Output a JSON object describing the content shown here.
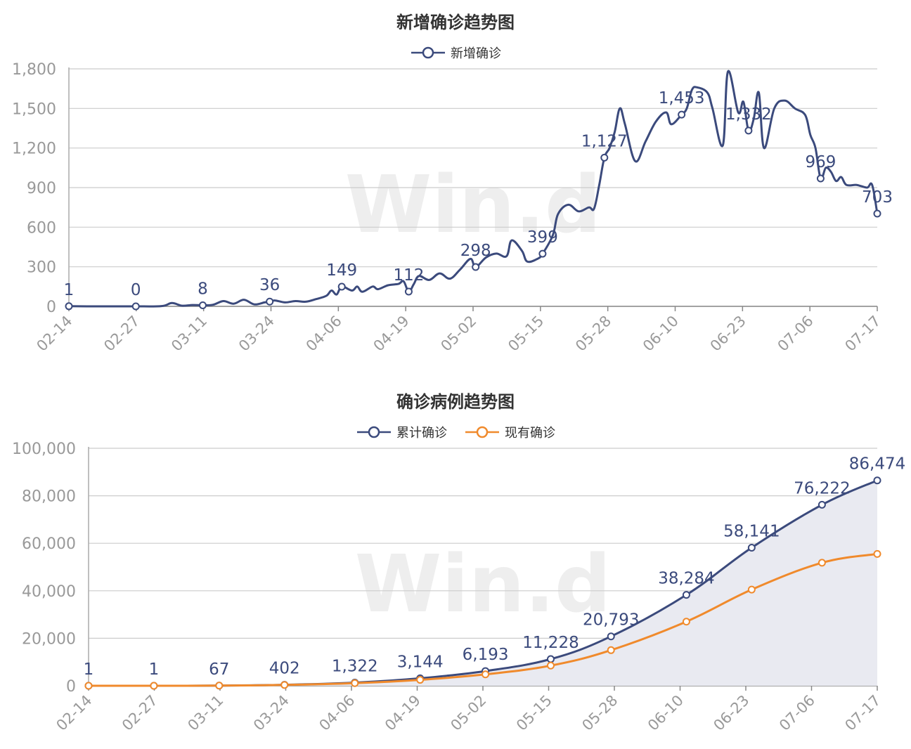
{
  "chart_data": [
    {
      "type": "line",
      "title": "新增确诊趋势图",
      "watermark": "Win.d",
      "x_ticks": [
        "02-14",
        "02-27",
        "03-11",
        "03-24",
        "04-06",
        "04-19",
        "05-02",
        "05-15",
        "05-28",
        "06-10",
        "06-23",
        "07-06",
        "07-17"
      ],
      "ylim": [
        0,
        1800
      ],
      "y_ticks": [
        0,
        300,
        600,
        900,
        1200,
        1500,
        1800
      ],
      "y_tick_labels": [
        "0",
        "300",
        "600",
        "900",
        "1,200",
        "1,500",
        "1,800"
      ],
      "grid": true,
      "legend": "top-center",
      "series": [
        {
          "name": "新增确诊",
          "color": "#3b4a7c",
          "smooth": true,
          "area": false,
          "points": [
            [
              0,
              1
            ],
            [
              5,
              0
            ],
            [
              10,
              0
            ],
            [
              13,
              0
            ],
            [
              18,
              2
            ],
            [
              20,
              25
            ],
            [
              22,
              5
            ],
            [
              24,
              10
            ],
            [
              26,
              8
            ],
            [
              28,
              12
            ],
            [
              30,
              40
            ],
            [
              32,
              20
            ],
            [
              34,
              50
            ],
            [
              36,
              15
            ],
            [
              38,
              30
            ],
            [
              39,
              36
            ],
            [
              40,
              45
            ],
            [
              42,
              30
            ],
            [
              44,
              40
            ],
            [
              46,
              35
            ],
            [
              48,
              55
            ],
            [
              50,
              80
            ],
            [
              51,
              120
            ],
            [
              52,
              90
            ],
            [
              53,
              149
            ],
            [
              55,
              120
            ],
            [
              56,
              150
            ],
            [
              57,
              110
            ],
            [
              59,
              150
            ],
            [
              60,
              130
            ],
            [
              62,
              160
            ],
            [
              64,
              170
            ],
            [
              65,
              190
            ],
            [
              66,
              112
            ],
            [
              67,
              170
            ],
            [
              68,
              230
            ],
            [
              70,
              200
            ],
            [
              72,
              250
            ],
            [
              74,
              210
            ],
            [
              76,
              280
            ],
            [
              78,
              360
            ],
            [
              79,
              298
            ],
            [
              81,
              370
            ],
            [
              83,
              400
            ],
            [
              85,
              380
            ],
            [
              86,
              500
            ],
            [
              88,
              420
            ],
            [
              89,
              340
            ],
            [
              91,
              360
            ],
            [
              92,
              399
            ],
            [
              94,
              540
            ],
            [
              95,
              700
            ],
            [
              97,
              770
            ],
            [
              99,
              720
            ],
            [
              101,
              750
            ],
            [
              102,
              740
            ],
            [
              103,
              920
            ],
            [
              104,
              1127
            ],
            [
              105,
              1200
            ],
            [
              106,
              1320
            ],
            [
              107,
              1500
            ],
            [
              108,
              1380
            ],
            [
              110,
              1100
            ],
            [
              112,
              1250
            ],
            [
              114,
              1400
            ],
            [
              116,
              1470
            ],
            [
              117,
              1380
            ],
            [
              119,
              1453
            ],
            [
              120,
              1500
            ],
            [
              121,
              1640
            ],
            [
              122,
              1660
            ],
            [
              124,
              1620
            ],
            [
              125,
              1500
            ],
            [
              127,
              1220
            ],
            [
              128,
              1780
            ],
            [
              130,
              1470
            ],
            [
              131,
              1550
            ],
            [
              132,
              1332
            ],
            [
              133,
              1420
            ],
            [
              134,
              1620
            ],
            [
              135,
              1200
            ],
            [
              137,
              1500
            ],
            [
              139,
              1560
            ],
            [
              141,
              1500
            ],
            [
              143,
              1450
            ],
            [
              144,
              1300
            ],
            [
              145,
              1200
            ],
            [
              146,
              969
            ],
            [
              147,
              1050
            ],
            [
              148,
              1020
            ],
            [
              149,
              950
            ],
            [
              150,
              980
            ],
            [
              151,
              920
            ],
            [
              153,
              920
            ],
            [
              155,
              900
            ],
            [
              156,
              920
            ],
            [
              157,
              703
            ]
          ],
          "labels": [
            {
              "x": 0,
              "y": 1,
              "text": "1"
            },
            {
              "x": 13,
              "y": 0,
              "text": "0"
            },
            {
              "x": 26,
              "y": 8,
              "text": "8"
            },
            {
              "x": 39,
              "y": 36,
              "text": "36"
            },
            {
              "x": 53,
              "y": 149,
              "text": "149"
            },
            {
              "x": 66,
              "y": 112,
              "text": "112"
            },
            {
              "x": 79,
              "y": 298,
              "text": "298"
            },
            {
              "x": 92,
              "y": 399,
              "text": "399"
            },
            {
              "x": 104,
              "y": 1127,
              "text": "1,127"
            },
            {
              "x": 119,
              "y": 1453,
              "text": "1,453"
            },
            {
              "x": 132,
              "y": 1332,
              "text": "1,332"
            },
            {
              "x": 146,
              "y": 969,
              "text": "969"
            },
            {
              "x": 157,
              "y": 703,
              "text": "703"
            }
          ]
        }
      ]
    },
    {
      "type": "area",
      "title": "确诊病例趋势图",
      "watermark": "Win.d",
      "x_ticks": [
        "02-14",
        "02-27",
        "03-11",
        "03-24",
        "04-06",
        "04-19",
        "05-02",
        "05-15",
        "05-28",
        "06-10",
        "06-23",
        "07-06",
        "07-17"
      ],
      "ylim": [
        0,
        100000
      ],
      "y_ticks": [
        0,
        20000,
        40000,
        60000,
        80000,
        100000
      ],
      "y_tick_labels": [
        "0",
        "20,000",
        "40,000",
        "60,000",
        "80,000",
        "100,000"
      ],
      "grid": true,
      "legend": "top-center",
      "series": [
        {
          "name": "累计确诊",
          "color": "#3b4a7c",
          "smooth": true,
          "area": true,
          "area_color": "#e9eaf1",
          "points": [
            [
              0,
              1
            ],
            [
              13,
              1
            ],
            [
              26,
              67
            ],
            [
              39,
              402
            ],
            [
              53,
              1322
            ],
            [
              66,
              3144
            ],
            [
              79,
              6193
            ],
            [
              92,
              11228
            ],
            [
              104,
              20793
            ],
            [
              119,
              38284
            ],
            [
              132,
              58141
            ],
            [
              146,
              76222
            ],
            [
              157,
              86474
            ]
          ],
          "labels": [
            {
              "x": 0,
              "y": 1,
              "text": "1"
            },
            {
              "x": 13,
              "y": 1,
              "text": "1"
            },
            {
              "x": 26,
              "y": 67,
              "text": "67"
            },
            {
              "x": 39,
              "y": 402,
              "text": "402"
            },
            {
              "x": 53,
              "y": 1322,
              "text": "1,322"
            },
            {
              "x": 66,
              "y": 3144,
              "text": "3,144"
            },
            {
              "x": 79,
              "y": 6193,
              "text": "6,193"
            },
            {
              "x": 92,
              "y": 11228,
              "text": "11,228"
            },
            {
              "x": 104,
              "y": 20793,
              "text": "20,793"
            },
            {
              "x": 119,
              "y": 38284,
              "text": "38,284"
            },
            {
              "x": 132,
              "y": 58141,
              "text": "58,141"
            },
            {
              "x": 146,
              "y": 76222,
              "text": "76,222"
            },
            {
              "x": 157,
              "y": 86474,
              "text": "86,474"
            }
          ]
        },
        {
          "name": "现有确诊",
          "color": "#f08a2c",
          "smooth": true,
          "area": false,
          "points": [
            [
              0,
              1
            ],
            [
              13,
              1
            ],
            [
              26,
              60
            ],
            [
              39,
              350
            ],
            [
              53,
              1100
            ],
            [
              66,
              2500
            ],
            [
              79,
              4800
            ],
            [
              92,
              8500
            ],
            [
              104,
              15000
            ],
            [
              119,
              27000
            ],
            [
              132,
              40500
            ],
            [
              146,
              51800
            ],
            [
              157,
              55500
            ]
          ],
          "labels": []
        }
      ]
    }
  ]
}
